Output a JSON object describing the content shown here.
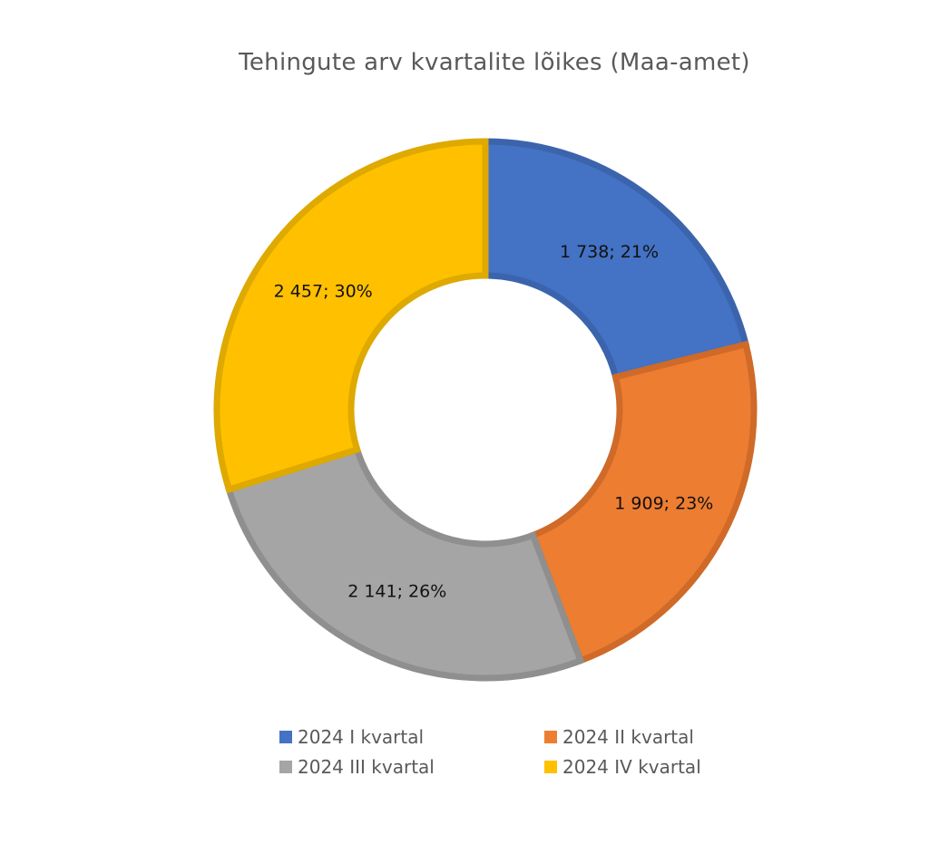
{
  "chart_data": {
    "type": "pie",
    "variant": "doughnut",
    "title": "Tehingute arv kvartalite lõikes (Maa-amet)",
    "categories": [
      "2024 I kvartal",
      "2024 II kvartal",
      "2024 III kvartal",
      "2024 IV kvartal"
    ],
    "values": [
      1738,
      1909,
      2141,
      2457
    ],
    "data_labels": [
      "1 738; 21%",
      "1 909; 23%",
      "2 141; 26%",
      "2 457; 30%"
    ],
    "colors": [
      "#4472C4",
      "#ED7D31",
      "#A5A5A5",
      "#FFC000"
    ],
    "border_colors": [
      "#3B64AD",
      "#CF6A28",
      "#8F8F8F",
      "#DEA900"
    ],
    "legend_position": "bottom"
  }
}
